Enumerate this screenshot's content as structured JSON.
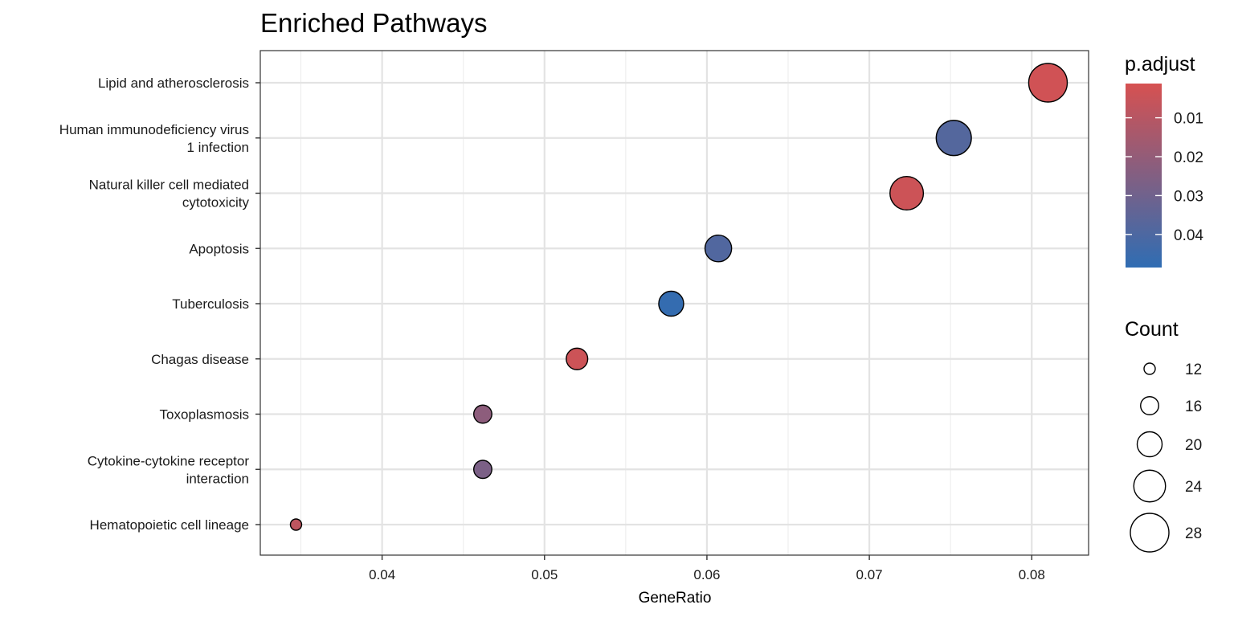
{
  "chart_data": {
    "type": "scatter",
    "title": "Enriched Pathways",
    "xlabel": "GeneRatio",
    "ylabel": "",
    "xlim": [
      0.0325,
      0.0835
    ],
    "x_ticks": [
      0.04,
      0.05,
      0.06,
      0.07,
      0.08
    ],
    "x_tick_labels": [
      "0.04",
      "0.05",
      "0.06",
      "0.07",
      "0.08"
    ],
    "categories": [
      [
        "Lipid and atherosclerosis"
      ],
      [
        "Human immunodeficiency virus",
        "1 infection"
      ],
      [
        "Natural killer cell mediated",
        "cytotoxicity"
      ],
      [
        "Apoptosis"
      ],
      [
        "Tuberculosis"
      ],
      [
        "Chagas disease"
      ],
      [
        "Toxoplasmosis"
      ],
      [
        "Cytokine-cytokine receptor",
        "interaction"
      ],
      [
        "Hematopoietic cell lineage"
      ]
    ],
    "points": [
      {
        "x": 0.081,
        "count": 28,
        "p_adjust": 0.003
      },
      {
        "x": 0.0752,
        "count": 26,
        "p_adjust": 0.038
      },
      {
        "x": 0.0723,
        "count": 25,
        "p_adjust": 0.004
      },
      {
        "x": 0.0607,
        "count": 21,
        "p_adjust": 0.039
      },
      {
        "x": 0.0578,
        "count": 20,
        "p_adjust": 0.047
      },
      {
        "x": 0.052,
        "count": 18,
        "p_adjust": 0.004
      },
      {
        "x": 0.0462,
        "count": 16,
        "p_adjust": 0.022
      },
      {
        "x": 0.0462,
        "count": 16,
        "p_adjust": 0.027
      },
      {
        "x": 0.0347,
        "count": 12,
        "p_adjust": 0.008
      }
    ],
    "grid": true,
    "legend": {
      "color": {
        "title": "p.adjust",
        "ticks": [
          0.01,
          0.02,
          0.03,
          0.04
        ],
        "tick_labels": [
          "0.01",
          "0.02",
          "0.03",
          "0.04"
        ],
        "range": [
          0.0012,
          0.0485
        ],
        "low_color": "#d65151",
        "high_color": "#2f6db3"
      },
      "size": {
        "title": "Count",
        "values": [
          12,
          16,
          20,
          24,
          28
        ],
        "labels": [
          "12",
          "16",
          "20",
          "24",
          "28"
        ]
      },
      "placement": "right"
    }
  }
}
